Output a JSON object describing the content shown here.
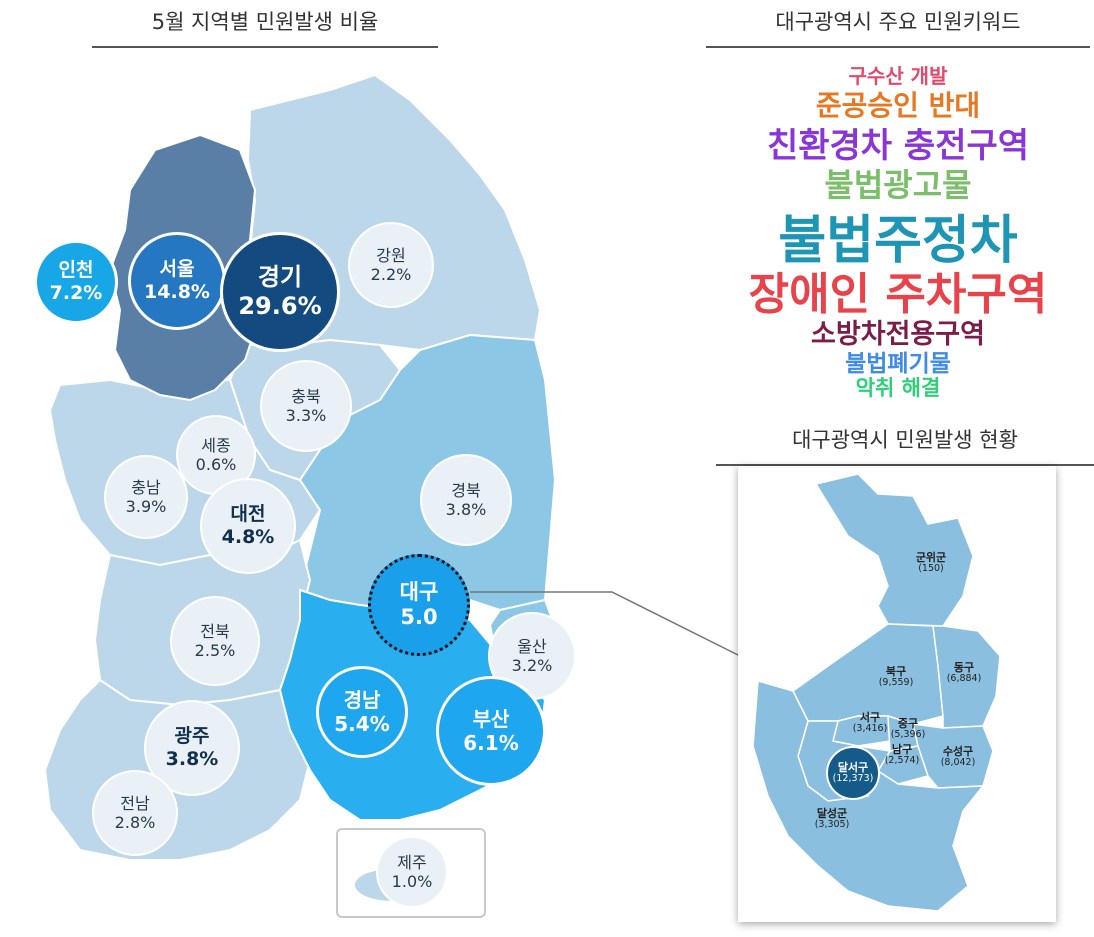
{
  "map_title": "5월 지역별 민원발생 비율",
  "keyword_title": "대구광역시 주요 민원키워드",
  "daegu_title": "대구광역시 민원발생 현황",
  "regions": [
    {
      "id": "incheon",
      "name": "인천",
      "value": "7.2%"
    },
    {
      "id": "seoul",
      "name": "서울",
      "value": "14.8%"
    },
    {
      "id": "gyeonggi",
      "name": "경기",
      "value": "29.6%"
    },
    {
      "id": "gangwon",
      "name": "강원",
      "value": "2.2%"
    },
    {
      "id": "chungbuk",
      "name": "충북",
      "value": "3.3%"
    },
    {
      "id": "sejong",
      "name": "세종",
      "value": "0.6%"
    },
    {
      "id": "chungnam",
      "name": "충남",
      "value": "3.9%"
    },
    {
      "id": "daejeon",
      "name": "대전",
      "value": "4.8%"
    },
    {
      "id": "gyeongbuk",
      "name": "경북",
      "value": "3.8%"
    },
    {
      "id": "daegu",
      "name": "대구",
      "value": "5.0"
    },
    {
      "id": "jeonbuk",
      "name": "전북",
      "value": "2.5%"
    },
    {
      "id": "ulsan",
      "name": "울산",
      "value": "3.2%"
    },
    {
      "id": "gyeongnam",
      "name": "경남",
      "value": "5.4%"
    },
    {
      "id": "busan",
      "name": "부산",
      "value": "6.1%"
    },
    {
      "id": "gwangju",
      "name": "광주",
      "value": "3.8%"
    },
    {
      "id": "jeonnam",
      "name": "전남",
      "value": "2.8%"
    },
    {
      "id": "jeju",
      "name": "제주",
      "value": "1.0%"
    }
  ],
  "keywords": [
    {
      "text": "구수산 개발",
      "color": "#e04a6e"
    },
    {
      "text": "준공승인 반대",
      "color": "#e87722"
    },
    {
      "text": "친환경차 충전구역",
      "color": "#8a35d6"
    },
    {
      "text": "불법광고물",
      "color": "#7cbf6a"
    },
    {
      "text": "불법주정차",
      "color": "#1e95b4"
    },
    {
      "text": "장애인 주차구역",
      "color": "#e8424a"
    },
    {
      "text": "소방차전용구역",
      "color": "#7a1d4a"
    },
    {
      "text": "불법폐기물",
      "color": "#3f8be8"
    },
    {
      "text": "악취 해결",
      "color": "#2ecf7a"
    }
  ],
  "districts": [
    {
      "id": "gunwi",
      "name": "군위군",
      "value": "(150)"
    },
    {
      "id": "bukgu",
      "name": "북구",
      "value": "(9,559)"
    },
    {
      "id": "donggu",
      "name": "동구",
      "value": "(6,884)"
    },
    {
      "id": "seogu",
      "name": "서구",
      "value": "(3,416)"
    },
    {
      "id": "junggu",
      "name": "중구",
      "value": "(5,396)"
    },
    {
      "id": "namgu",
      "name": "남구",
      "value": "(2,574)"
    },
    {
      "id": "suseong",
      "name": "수성구",
      "value": "(8,042)"
    },
    {
      "id": "dalseo",
      "name": "달서구",
      "value": "(12,373)"
    },
    {
      "id": "dalseong",
      "name": "달성군",
      "value": "(3,305)"
    }
  ],
  "colors": {
    "seoul_gyeonggi": "#5a7fa6",
    "light_region": "#bcd7ea",
    "mid_region": "#8cc7e6",
    "gyeongnam": "#29aef0",
    "daegu_map": "#8bbfdf"
  }
}
